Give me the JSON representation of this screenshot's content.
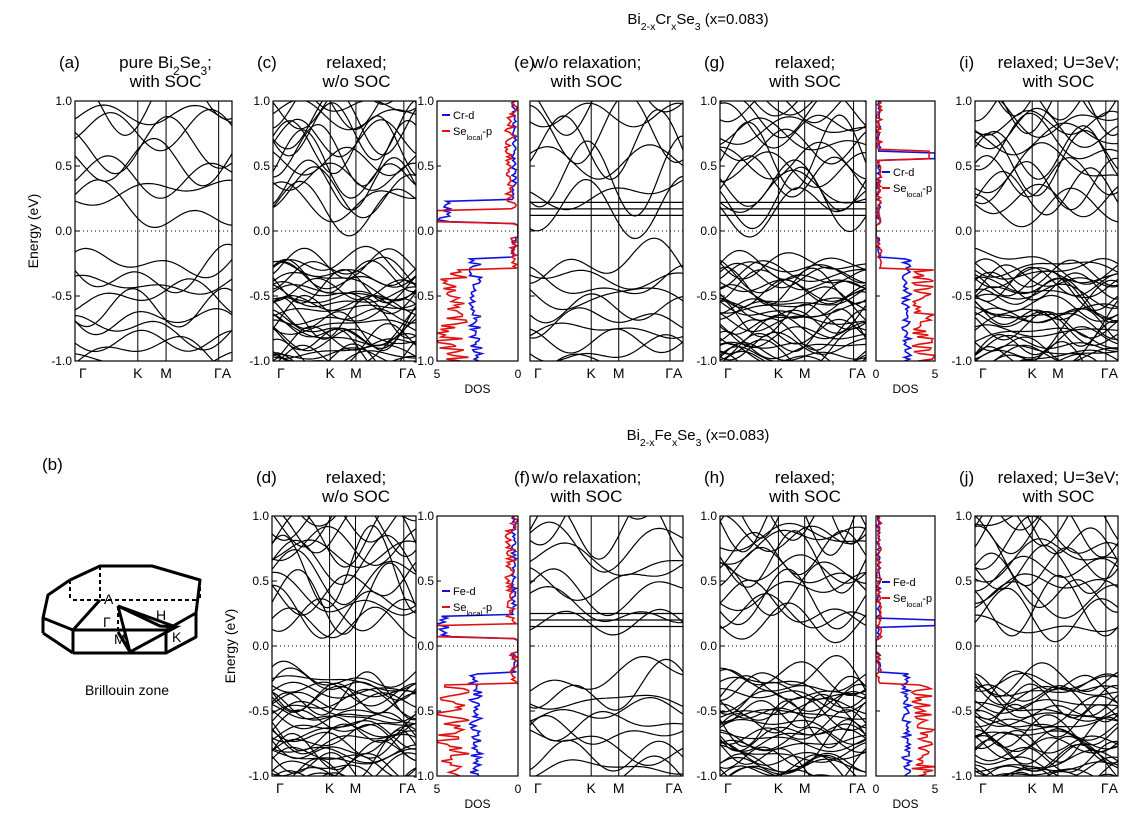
{
  "figure": {
    "headers": [
      {
        "id": "cr",
        "title": "Bi2-xCrxSe3 (x=0.083)",
        "rich": [
          [
            "Bi",
            ""
          ],
          [
            "2-x",
            "sub"
          ],
          [
            "Cr",
            ""
          ],
          [
            "x",
            "sub"
          ],
          [
            "Se",
            ""
          ],
          [
            "3",
            "sub"
          ],
          [
            " (x=0.083)",
            ""
          ]
        ]
      },
      {
        "id": "fe",
        "title": "Bi2-xFexSe3 (x=0.083)",
        "rich": [
          [
            "Bi",
            ""
          ],
          [
            "2-x",
            "sub"
          ],
          [
            "Fe",
            ""
          ],
          [
            "x",
            "sub"
          ],
          [
            "Se",
            ""
          ],
          [
            "3",
            "sub"
          ],
          [
            " (x=0.083)",
            ""
          ]
        ]
      }
    ],
    "energy_axis_label": "Energy (eV)",
    "dos_axis_label": "DOS",
    "brillouin": {
      "label": "(b)",
      "caption": "Brillouin zone",
      "points": [
        "A",
        "H",
        "Γ",
        "M",
        "K"
      ]
    }
  },
  "chart_data": [
    {
      "id": "a",
      "type": "line",
      "panel_label": "(a)",
      "title_lines": [
        [
          [
            "pure Bi",
            ""
          ],
          [
            "2",
            "sub"
          ],
          [
            "Se",
            ""
          ],
          [
            "3",
            "sub"
          ],
          [
            ";",
            ""
          ]
        ],
        [
          [
            "with SOC",
            ""
          ]
        ]
      ],
      "ylim": [
        -1.0,
        1.0
      ],
      "yticks": [
        -1.0,
        -0.5,
        0.0,
        0.5,
        1.0
      ],
      "k_points": [
        "Γ",
        "K",
        "M",
        "ΓA"
      ],
      "fermi_level": 0.0,
      "show_ylabel": true
    },
    {
      "id": "c",
      "type": "line",
      "panel_label": "(c)",
      "title_lines": [
        [
          [
            "relaxed;",
            ""
          ]
        ],
        [
          [
            "w/o SOC",
            ""
          ]
        ]
      ],
      "ylim": [
        -1.0,
        1.0
      ],
      "yticks": [
        -1.0,
        -0.5,
        0.0,
        0.5,
        1.0
      ],
      "k_points": [
        "Γ",
        "K",
        "M",
        "ΓA"
      ],
      "fermi_level": 0.0
    },
    {
      "id": "e",
      "type": "line",
      "panel_label": "(e)",
      "title_lines": [
        [
          [
            "w/o relaxation;",
            ""
          ]
        ],
        [
          [
            "with SOC",
            ""
          ]
        ]
      ],
      "ylim": [
        -1.0,
        1.0
      ],
      "k_points": [
        "Γ",
        "K",
        "M",
        "ΓA"
      ],
      "fermi_level": 0.0,
      "dos": {
        "side": "left",
        "xlim": [
          5,
          0
        ],
        "xticks": [
          5,
          0
        ],
        "xlabel": "DOS",
        "legend": [
          {
            "name": "Cr-d",
            "color": "#1010e0"
          },
          {
            "name": "Se-local-p",
            "rich": [
              [
                "Se",
                ""
              ],
              [
                "local",
                "sub"
              ],
              [
                "-p",
                ""
              ]
            ],
            "color": "#e01010"
          }
        ]
      }
    },
    {
      "id": "g",
      "type": "line",
      "panel_label": "(g)",
      "title_lines": [
        [
          [
            "relaxed;",
            ""
          ]
        ],
        [
          [
            "with SOC",
            ""
          ]
        ]
      ],
      "ylim": [
        -1.0,
        1.0
      ],
      "yticks": [
        -1.0,
        -0.5,
        0.0,
        0.5,
        1.0
      ],
      "k_points": [
        "Γ",
        "K",
        "M",
        "ΓA"
      ],
      "fermi_level": 0.0,
      "dos": {
        "side": "right",
        "xlim": [
          0,
          5
        ],
        "xticks": [
          0,
          5
        ],
        "xlabel": "DOS",
        "legend": [
          {
            "name": "Cr-d",
            "color": "#1010e0"
          },
          {
            "name": "Se-local-p",
            "rich": [
              [
                "Se",
                ""
              ],
              [
                "local",
                "sub"
              ],
              [
                "-p",
                ""
              ]
            ],
            "color": "#e01010"
          }
        ]
      }
    },
    {
      "id": "i",
      "type": "line",
      "panel_label": "(i)",
      "title_lines": [
        [
          [
            "relaxed; U=3eV;",
            ""
          ]
        ],
        [
          [
            "with SOC",
            ""
          ]
        ]
      ],
      "ylim": [
        -1.0,
        1.0
      ],
      "yticks": [
        -1.0,
        -0.5,
        0.0,
        0.5,
        1.0
      ],
      "k_points": [
        "Γ",
        "K",
        "M",
        "ΓA"
      ],
      "fermi_level": 0.0
    },
    {
      "id": "d",
      "type": "line",
      "panel_label": "(d)",
      "title_lines": [
        [
          [
            "relaxed;",
            ""
          ]
        ],
        [
          [
            "w/o SOC",
            ""
          ]
        ]
      ],
      "ylim": [
        -1.0,
        1.0
      ],
      "yticks": [
        -1.0,
        -0.5,
        0.0,
        0.5,
        1.0
      ],
      "k_points": [
        "Γ",
        "K",
        "M",
        "ΓA"
      ],
      "fermi_level": 0.0,
      "show_ylabel": true
    },
    {
      "id": "f",
      "type": "line",
      "panel_label": "(f)",
      "title_lines": [
        [
          [
            "w/o relaxation;",
            ""
          ]
        ],
        [
          [
            "with SOC",
            ""
          ]
        ]
      ],
      "ylim": [
        -1.0,
        1.0
      ],
      "k_points": [
        "Γ",
        "K",
        "M",
        "ΓA"
      ],
      "fermi_level": 0.0,
      "dos": {
        "side": "left",
        "xlim": [
          5,
          0
        ],
        "xticks": [
          5,
          0
        ],
        "xlabel": "DOS",
        "legend": [
          {
            "name": "Fe-d",
            "color": "#1010e0"
          },
          {
            "name": "Se-local-p",
            "rich": [
              [
                "Se",
                ""
              ],
              [
                "local",
                "sub"
              ],
              [
                "-p",
                ""
              ]
            ],
            "color": "#e01010"
          }
        ]
      }
    },
    {
      "id": "h",
      "type": "line",
      "panel_label": "(h)",
      "title_lines": [
        [
          [
            "relaxed;",
            ""
          ]
        ],
        [
          [
            "with SOC",
            ""
          ]
        ]
      ],
      "ylim": [
        -1.0,
        1.0
      ],
      "yticks": [
        -1.0,
        -0.5,
        0.0,
        0.5,
        1.0
      ],
      "k_points": [
        "Γ",
        "K",
        "M",
        "ΓA"
      ],
      "fermi_level": 0.0,
      "dos": {
        "side": "right",
        "xlim": [
          0,
          5
        ],
        "xticks": [
          0,
          5
        ],
        "xlabel": "DOS",
        "legend": [
          {
            "name": "Fe-d",
            "color": "#1010e0"
          },
          {
            "name": "Se-local-p",
            "rich": [
              [
                "Se",
                ""
              ],
              [
                "local",
                "sub"
              ],
              [
                "-p",
                ""
              ]
            ],
            "color": "#e01010"
          }
        ]
      }
    },
    {
      "id": "j",
      "type": "line",
      "panel_label": "(j)",
      "title_lines": [
        [
          [
            "relaxed; U=3eV;",
            ""
          ]
        ],
        [
          [
            "with SOC",
            ""
          ]
        ]
      ],
      "ylim": [
        -1.0,
        1.0
      ],
      "yticks": [
        -1.0,
        -0.5,
        0.0,
        0.5,
        1.0
      ],
      "k_points": [
        "Γ",
        "K",
        "M",
        "ΓA"
      ],
      "fermi_level": 0.0
    }
  ]
}
